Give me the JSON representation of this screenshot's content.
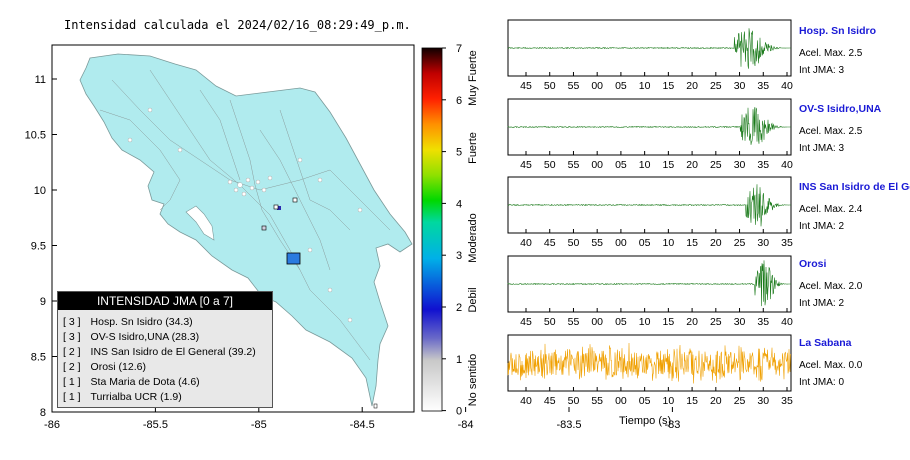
{
  "title": "Intensidad calculada el 2024/02/16_08:29:49_p.m.",
  "map": {
    "x_ticks": [
      "-86",
      "-85.5",
      "-85",
      "-84.5",
      "-84",
      "-83.5",
      "-83"
    ],
    "y_ticks": [
      "11",
      "10.5",
      "10",
      "9.5",
      "9",
      "8.5",
      "8"
    ],
    "land_color": "#b0ebee"
  },
  "colorbar": {
    "ticks": [
      "7",
      "6",
      "5",
      "4",
      "3",
      "2",
      "1",
      "0"
    ],
    "classes": [
      "Muy Fuerte",
      "Fuerte",
      "Moderado",
      "Debil",
      "No sentido"
    ]
  },
  "legend": {
    "title": "INTENSIDAD JMA [0 a 7]",
    "items": [
      {
        "level": "3",
        "label": "Hosp. Sn Isidro (34.3)"
      },
      {
        "level": "3",
        "label": "OV-S Isidro,UNA (28.3)"
      },
      {
        "level": "2",
        "label": "INS San Isidro de El General (39.2)"
      },
      {
        "level": "2",
        "label": "Orosi (12.6)"
      },
      {
        "level": "1",
        "label": "Sta Maria de Dota (4.6)"
      },
      {
        "level": "1",
        "label": "Turrialba UCR (1.9)"
      }
    ]
  },
  "stations": [
    {
      "name": "Hosp. Sn Isidro",
      "accel": "Acel. Max. 2.5",
      "int": "Int JMA: 3",
      "ticks": [
        "45",
        "50",
        "55",
        "00",
        "05",
        "10",
        "15",
        "20",
        "25",
        "30",
        "35",
        "40"
      ],
      "color": "#1a7a1a",
      "onset": 0.8
    },
    {
      "name": "OV-S Isidro,UNA",
      "accel": "Acel. Max. 2.5",
      "int": "Int JMA: 3",
      "ticks": [
        "45",
        "50",
        "55",
        "00",
        "05",
        "10",
        "15",
        "20",
        "25",
        "30",
        "35",
        "40"
      ],
      "color": "#1a7a1a",
      "onset": 0.82
    },
    {
      "name": "INS San Isidro de El Ge",
      "accel": "Acel. Max. 2.4",
      "int": "Int JMA: 2",
      "ticks": [
        "40",
        "45",
        "50",
        "55",
        "00",
        "05",
        "10",
        "15",
        "20",
        "25",
        "30",
        "35"
      ],
      "color": "#1a7a1a",
      "onset": 0.84
    },
    {
      "name": "Orosi",
      "accel": "Acel. Max. 2.0",
      "int": "Int JMA: 2",
      "ticks": [
        "45",
        "50",
        "55",
        "00",
        "05",
        "10",
        "15",
        "20",
        "25",
        "30",
        "35",
        "40"
      ],
      "color": "#1a7a1a",
      "onset": 0.87
    },
    {
      "name": "La Sabana",
      "accel": "Acel. Max. 0.0",
      "int": "Int JMA: 0",
      "ticks": [
        "40",
        "45",
        "50",
        "55",
        "00",
        "05",
        "10",
        "15",
        "20",
        "25",
        "30",
        "35"
      ],
      "color": "#f0a000",
      "onset": 0.0
    }
  ],
  "xlabel": "Tiempo (s)"
}
